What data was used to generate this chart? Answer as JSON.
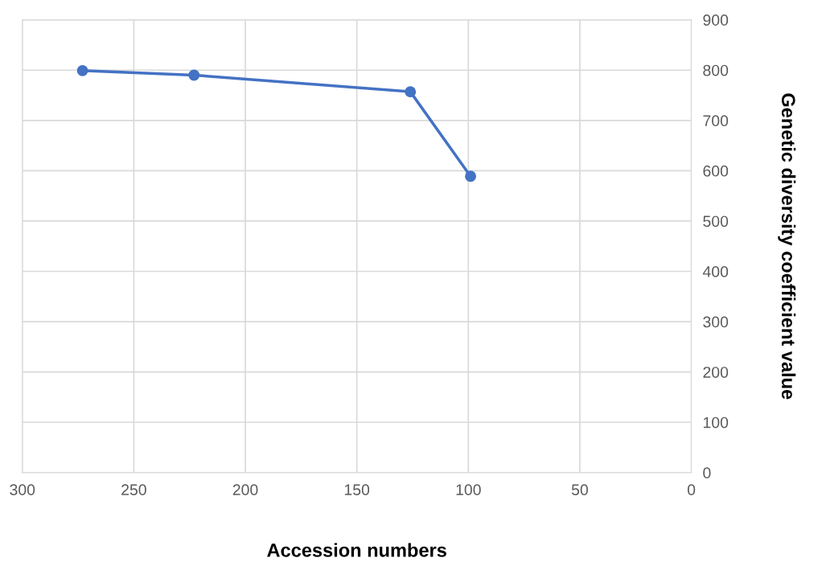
{
  "chart_data": {
    "type": "line",
    "xlabel": "Accession numbers",
    "y2label": "Genetic diversity coefficient value",
    "series": [
      {
        "color": "#4472c4",
        "x": [
          273,
          223,
          126,
          99
        ],
        "values": [
          799,
          790,
          757,
          589
        ],
        "axis": "y2"
      }
    ],
    "xlim": [
      300,
      0
    ],
    "xticks": [
      300,
      250,
      200,
      150,
      100,
      50,
      0
    ],
    "y2lim": [
      0,
      900
    ],
    "y2ticks": [
      0,
      100,
      200,
      300,
      400,
      500,
      600,
      700,
      800,
      900
    ],
    "grid": true,
    "marker": "circle",
    "line_style": "solid"
  }
}
